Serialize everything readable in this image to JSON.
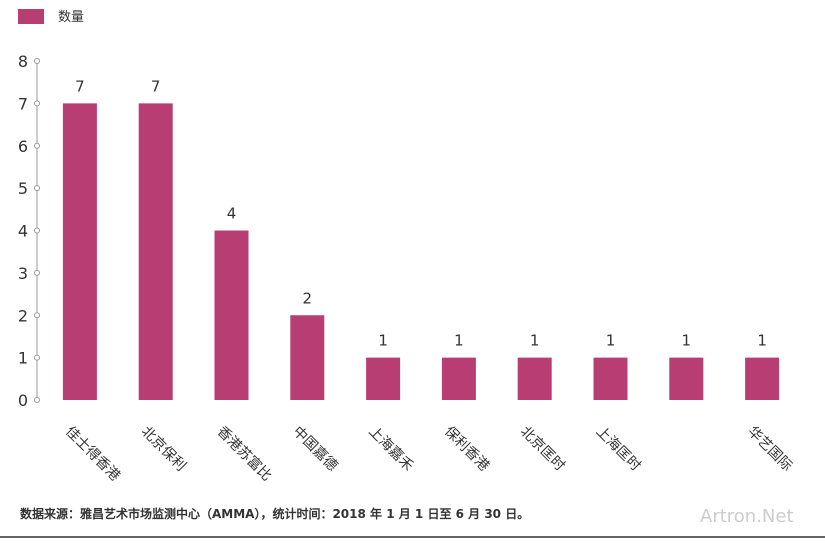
{
  "chart_data": {
    "type": "bar",
    "categories": [
      "佳士得香港",
      "北京保利",
      "香港苏富比",
      "中国嘉德",
      "上海嘉禾",
      "保利香港",
      "北京匡时",
      "上海匡时",
      null,
      "华艺国际"
    ],
    "series": [
      {
        "name": "数量",
        "color": "#b83d72",
        "values": [
          7,
          7,
          4,
          2,
          1,
          1,
          1,
          1,
          1,
          1
        ]
      }
    ],
    "ylim": [
      0,
      8
    ],
    "yticks": [
      0,
      1,
      2,
      3,
      4,
      5,
      6,
      7,
      8
    ],
    "source": "数据来源：雅昌艺术市场监测中心（AMMA），统计时间：2018 年 1 月 1 日至 6 月 30 日。",
    "watermark": "Artron.Net"
  }
}
